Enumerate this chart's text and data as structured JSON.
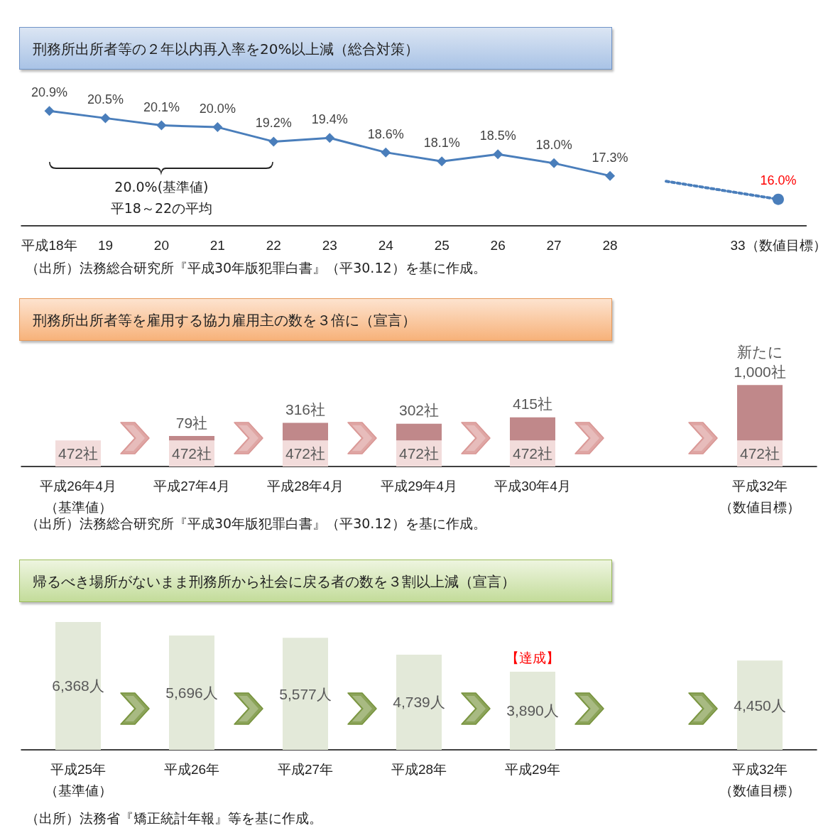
{
  "chart_data": [
    {
      "type": "line",
      "title": "刑務所出所者等の２年以内再入率を20%以上減（総合対策）",
      "categories": [
        "平成18年",
        "19",
        "20",
        "21",
        "22",
        "23",
        "24",
        "25",
        "26",
        "27",
        "28",
        null,
        null,
        "33（数値目標）"
      ],
      "series": [
        {
          "color": "#4a7ebb",
          "marker": "diamond",
          "line_style": "solid",
          "values": [
            20.9,
            20.5,
            20.1,
            20.0,
            19.2,
            19.4,
            18.6,
            18.1,
            18.5,
            18.0,
            17.3,
            null,
            null,
            null
          ],
          "value_labels": [
            "20.9%",
            "20.5%",
            "20.1%",
            "20.0%",
            "19.2%",
            "19.4%",
            "18.6%",
            "18.1%",
            "18.5%",
            "18.0%",
            "17.3%",
            null,
            null,
            null
          ]
        },
        {
          "color": "#4a7ebb",
          "marker": "circle",
          "line_style": "dotted",
          "values": [
            null,
            null,
            null,
            null,
            null,
            null,
            null,
            null,
            null,
            null,
            null,
            17.0,
            null,
            16.0
          ],
          "value_labels": [
            null,
            null,
            null,
            null,
            null,
            null,
            null,
            null,
            null,
            null,
            null,
            null,
            null,
            "16.0%"
          ]
        }
      ],
      "tick_labels": "x",
      "grid": false,
      "annotations": [
        "20.0%(基準値)\n平18～22の平均",
        "（出所）法務総合研究所『平成30年版犯罪白書』（平30.12）を基に作成。"
      ]
    },
    {
      "type": "bar",
      "stacked": true,
      "title": "刑務所出所者等を雇用する協力雇用主の数を３倍に（宣言）",
      "categories": [
        "平成26年4月（基準値）",
        "平成27年4月",
        "平成28年4月",
        "平成29年4月",
        "平成30年4月",
        null,
        "平成32年（数値目標）"
      ],
      "series": [
        {
          "color": "#f2dcdb",
          "values": [
            472,
            472,
            472,
            472,
            472,
            null,
            472
          ],
          "value_labels": [
            "472社",
            "472社",
            "472社",
            "472社",
            "472社",
            null,
            "472社"
          ]
        },
        {
          "color": "#c0888a",
          "values": [
            null,
            79,
            316,
            302,
            415,
            null,
            1000
          ],
          "value_labels": [
            null,
            "79社",
            "316社",
            "302社",
            "415社",
            null,
            "新たに\n1,000社"
          ]
        }
      ],
      "tick_labels": "x",
      "grid": false,
      "annotations": [
        "（出所）法務総合研究所『平成30年版犯罪白書』（平30.12）を基に作成。"
      ]
    },
    {
      "type": "bar",
      "title": "帰るべき場所がないまま刑務所から社会に戻る者の数を３割以上減（宣言）",
      "categories": [
        "平成25年（基準値）",
        "平成26年",
        "平成27年",
        "平成28年",
        "平成29年",
        null,
        "平成32年（数値目標）"
      ],
      "values": [
        6368,
        5696,
        5577,
        4739,
        3890,
        null,
        4450
      ],
      "color": "#e3e9d9",
      "value_labels": [
        "6,368人",
        "5,696人",
        "5,577人",
        "4,739人",
        "3,890人",
        null,
        "4,450人"
      ],
      "tick_labels": "x",
      "grid": false,
      "annotations": [
        "【達成】",
        "（出所）法務省『矯正統計年報』等を基に作成。"
      ]
    }
  ]
}
